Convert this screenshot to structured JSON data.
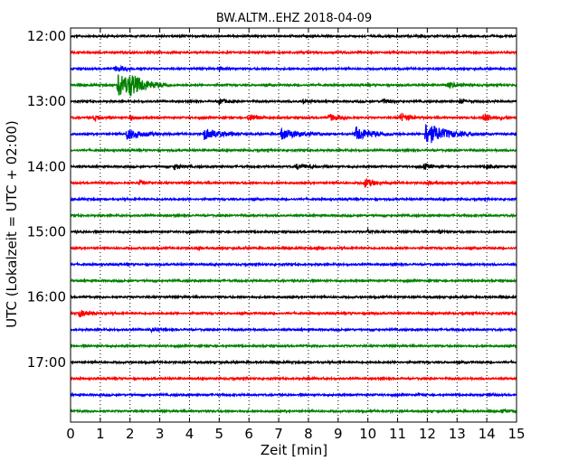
{
  "chart_data": {
    "type": "line",
    "title": "BW.ALTM..EHZ 2018-04-09",
    "xlabel": "Zeit  [min]",
    "ylabel": "UTC (Lokalzeit = UTC + 02:00)",
    "xlim": [
      0,
      15
    ],
    "x_ticks": [
      "0",
      "1",
      "2",
      "3",
      "4",
      "5",
      "6",
      "7",
      "8",
      "9",
      "10",
      "11",
      "12",
      "13",
      "14",
      "15"
    ],
    "y_tick_labels": [
      "12:00",
      "13:00",
      "14:00",
      "15:00",
      "16:00",
      "17:00"
    ],
    "trace_interval_min": 15,
    "trace_start": "12:00",
    "trace_count": 24,
    "trace_colors": [
      "#000000",
      "#ff0000",
      "#0000ff",
      "#008000"
    ],
    "vertical_grid": "dotted",
    "events": [
      {
        "trace": 2,
        "t": 1.5,
        "amp": 0.6,
        "dur": 0.4
      },
      {
        "trace": 2,
        "t": 5.0,
        "amp": 0.5,
        "dur": 0.2
      },
      {
        "trace": 3,
        "t": 1.6,
        "amp": 3.2,
        "dur": 0.6
      },
      {
        "trace": 3,
        "t": 2.0,
        "amp": 1.6,
        "dur": 0.4
      },
      {
        "trace": 3,
        "t": 12.7,
        "amp": 0.7,
        "dur": 0.3
      },
      {
        "trace": 4,
        "t": 5.0,
        "amp": 0.7,
        "dur": 0.2
      },
      {
        "trace": 4,
        "t": 7.8,
        "amp": 0.6,
        "dur": 0.2
      },
      {
        "trace": 4,
        "t": 10.5,
        "amp": 0.6,
        "dur": 0.2
      },
      {
        "trace": 4,
        "t": 13.1,
        "amp": 0.6,
        "dur": 0.2
      },
      {
        "trace": 5,
        "t": 0.8,
        "amp": 0.7,
        "dur": 0.2
      },
      {
        "trace": 5,
        "t": 2.0,
        "amp": 0.6,
        "dur": 0.2
      },
      {
        "trace": 5,
        "t": 6.0,
        "amp": 0.9,
        "dur": 0.3
      },
      {
        "trace": 5,
        "t": 8.7,
        "amp": 0.9,
        "dur": 0.3
      },
      {
        "trace": 5,
        "t": 11.1,
        "amp": 1.0,
        "dur": 0.3
      },
      {
        "trace": 5,
        "t": 13.9,
        "amp": 1.1,
        "dur": 0.3
      },
      {
        "trace": 6,
        "t": 1.9,
        "amp": 1.4,
        "dur": 0.5
      },
      {
        "trace": 6,
        "t": 4.5,
        "amp": 1.5,
        "dur": 0.5
      },
      {
        "trace": 6,
        "t": 7.1,
        "amp": 1.5,
        "dur": 0.5
      },
      {
        "trace": 6,
        "t": 9.6,
        "amp": 1.8,
        "dur": 0.5
      },
      {
        "trace": 6,
        "t": 11.95,
        "amp": 3.0,
        "dur": 0.6
      },
      {
        "trace": 8,
        "t": 3.5,
        "amp": 0.8,
        "dur": 0.2
      },
      {
        "trace": 8,
        "t": 7.6,
        "amp": 0.6,
        "dur": 0.4
      },
      {
        "trace": 8,
        "t": 11.9,
        "amp": 0.8,
        "dur": 0.2
      },
      {
        "trace": 8,
        "t": 14.0,
        "amp": 0.5,
        "dur": 0.2
      },
      {
        "trace": 9,
        "t": 2.3,
        "amp": 0.5,
        "dur": 0.2
      },
      {
        "trace": 9,
        "t": 9.9,
        "amp": 1.2,
        "dur": 0.3
      },
      {
        "trace": 9,
        "t": 12.0,
        "amp": 0.5,
        "dur": 0.2
      },
      {
        "trace": 12,
        "t": 10.0,
        "amp": 0.6,
        "dur": 0.1
      },
      {
        "trace": 12,
        "t": 12.4,
        "amp": 0.6,
        "dur": 0.1
      },
      {
        "trace": 13,
        "t": 4.3,
        "amp": 0.5,
        "dur": 0.1
      },
      {
        "trace": 13,
        "t": 8.3,
        "amp": 0.4,
        "dur": 0.1
      },
      {
        "trace": 17,
        "t": 0.3,
        "amp": 0.9,
        "dur": 0.3
      },
      {
        "trace": 17,
        "t": 10.0,
        "amp": 0.4,
        "dur": 0.1
      },
      {
        "trace": 18,
        "t": 2.7,
        "amp": 0.4,
        "dur": 0.2
      },
      {
        "trace": 21,
        "t": 8.0,
        "amp": 0.3,
        "dur": 0.2
      },
      {
        "trace": 22,
        "t": 11.7,
        "amp": 0.4,
        "dur": 0.1
      },
      {
        "trace": 22,
        "t": 14.1,
        "amp": 0.4,
        "dur": 0.1
      },
      {
        "trace": 23,
        "t": 14.5,
        "amp": 0.4,
        "dur": 0.2
      }
    ]
  }
}
